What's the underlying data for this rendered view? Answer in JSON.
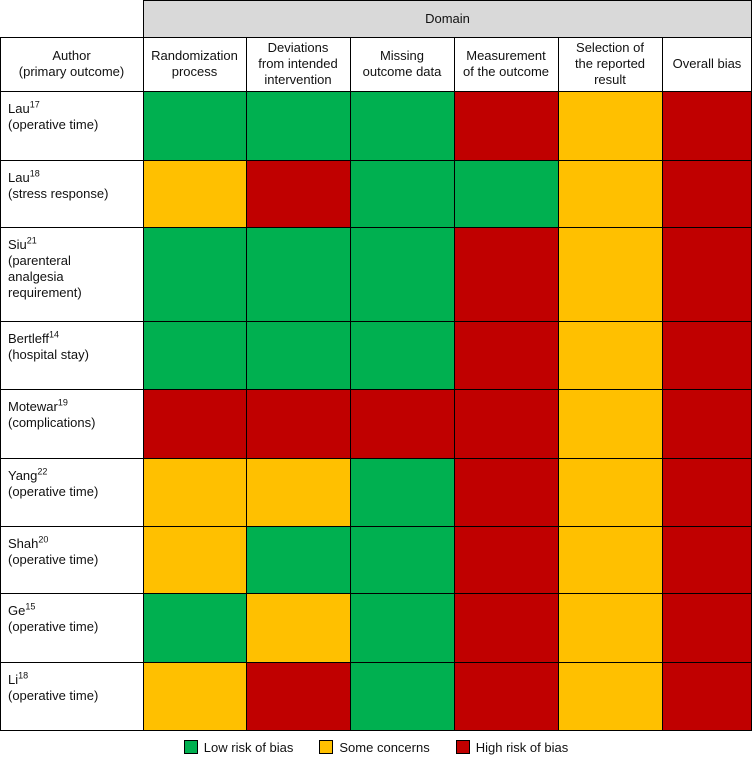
{
  "header": {
    "domain_label": "Domain",
    "author_label_line1": "Author",
    "author_label_line2": "(primary outcome)",
    "columns": [
      [
        "Randomization",
        "process"
      ],
      [
        "Deviations",
        "from intended",
        "intervention"
      ],
      [
        "Missing",
        "outcome data"
      ],
      [
        "Measurement",
        "of the outcome"
      ],
      [
        "Selection of",
        "the reported",
        "result"
      ],
      [
        "Overall bias"
      ]
    ]
  },
  "colors": {
    "low": "#00b050",
    "some": "#ffc000",
    "high": "#c00000"
  },
  "rows": [
    {
      "name": "Lau",
      "ref": "17",
      "outcome": [
        "(operative time)"
      ],
      "ratings": [
        "low",
        "low",
        "low",
        "high",
        "some",
        "high"
      ]
    },
    {
      "name": "Lau",
      "ref": "18",
      "outcome": [
        "(stress response)"
      ],
      "ratings": [
        "some",
        "high",
        "low",
        "low",
        "some",
        "high"
      ]
    },
    {
      "name": "Siu",
      "ref": "21",
      "outcome": [
        "(parenteral",
        "analgesia",
        "requirement)"
      ],
      "ratings": [
        "low",
        "low",
        "low",
        "high",
        "some",
        "high"
      ]
    },
    {
      "name": "Bertleff",
      "ref": "14",
      "outcome": [
        "(hospital stay)"
      ],
      "ratings": [
        "low",
        "low",
        "low",
        "high",
        "some",
        "high"
      ]
    },
    {
      "name": "Motewar",
      "ref": "19",
      "outcome": [
        "(complications)"
      ],
      "ratings": [
        "high",
        "high",
        "high",
        "high",
        "some",
        "high"
      ]
    },
    {
      "name": "Yang",
      "ref": "22",
      "outcome": [
        "(operative time)"
      ],
      "ratings": [
        "some",
        "some",
        "low",
        "high",
        "some",
        "high"
      ]
    },
    {
      "name": "Shah",
      "ref": "20",
      "outcome": [
        "(operative time)"
      ],
      "ratings": [
        "some",
        "low",
        "low",
        "high",
        "some",
        "high"
      ]
    },
    {
      "name": "Ge",
      "ref": "15",
      "outcome": [
        "(operative time)"
      ],
      "ratings": [
        "low",
        "some",
        "low",
        "high",
        "some",
        "high"
      ]
    },
    {
      "name": "Li",
      "ref": "18",
      "outcome": [
        "(operative time)"
      ],
      "ratings": [
        "some",
        "high",
        "low",
        "high",
        "some",
        "high"
      ]
    }
  ],
  "legend": [
    {
      "key": "low",
      "label": "Low risk of bias"
    },
    {
      "key": "some",
      "label": "Some concerns"
    },
    {
      "key": "high",
      "label": "High risk of bias"
    }
  ]
}
